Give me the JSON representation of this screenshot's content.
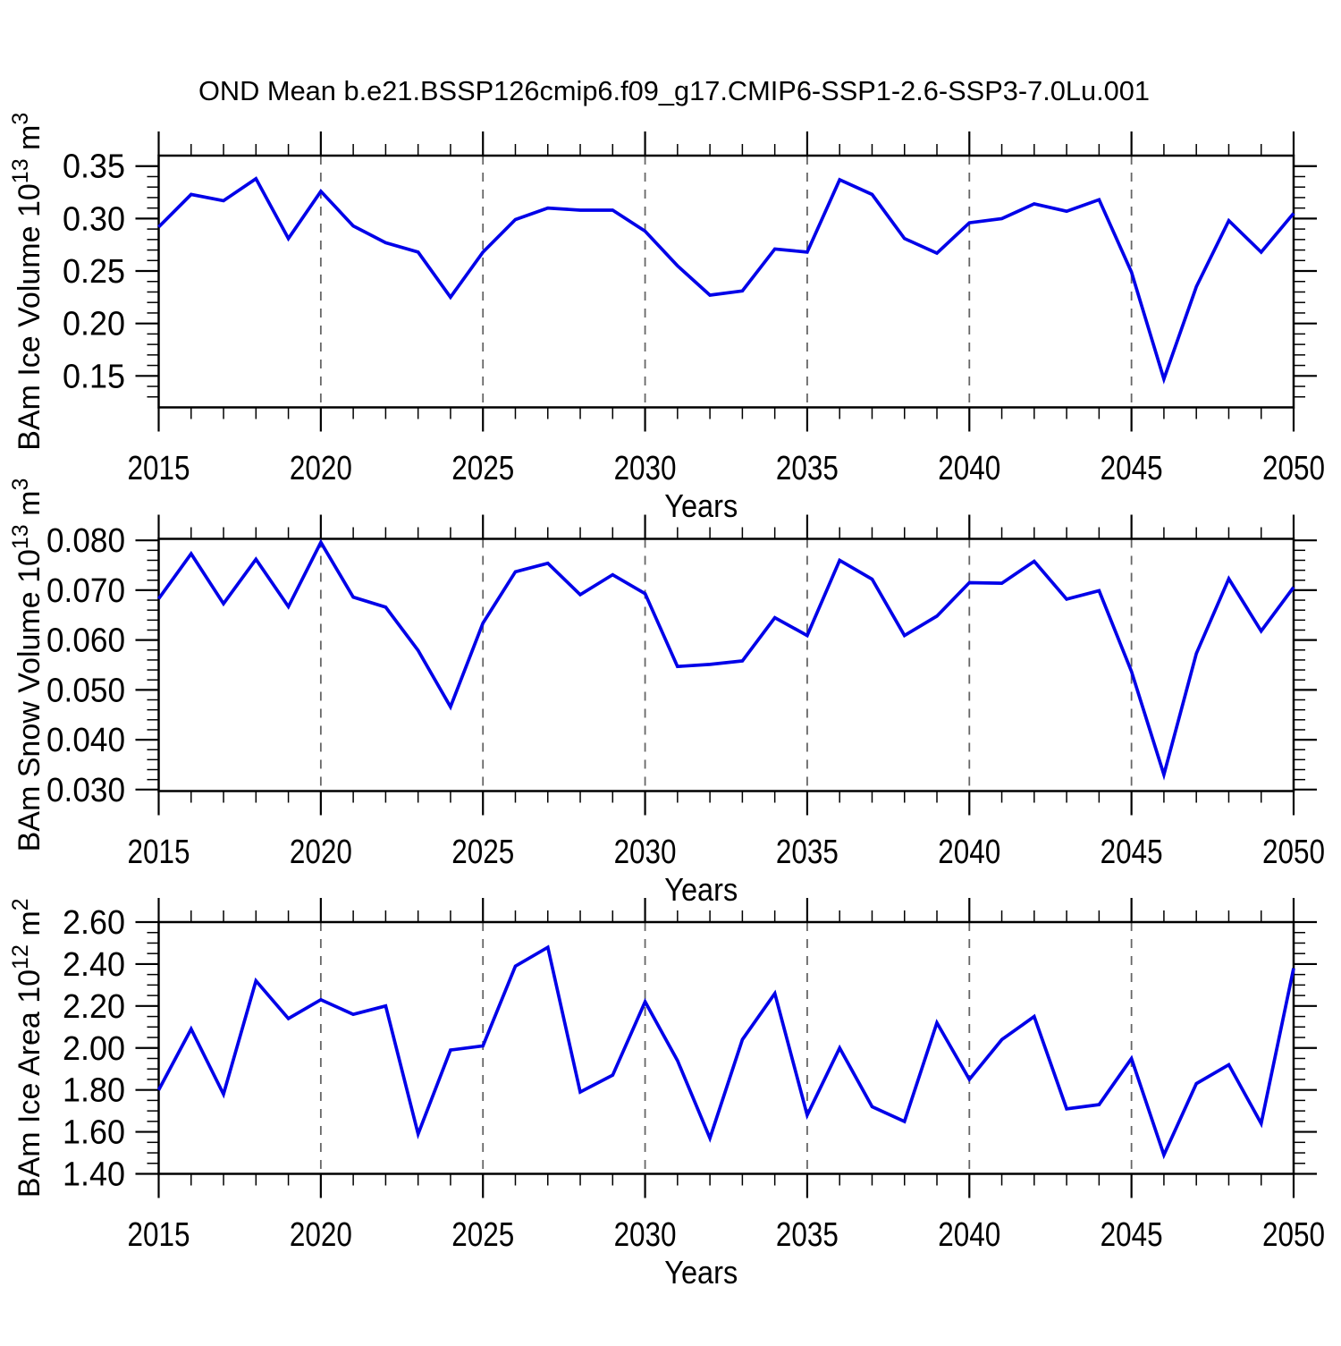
{
  "figure": {
    "title": "OND Mean b.e21.BSSP126cmip6.f09_g17.CMIP6-SSP1-2.6-SSP3-7.0Lu.001",
    "background_color": "#ffffff",
    "line_color": "#0000e8",
    "axis_color": "#000000",
    "grid_color": "#666666"
  },
  "chart_data": [
    {
      "type": "line",
      "name": "bam-ice-volume",
      "title": "",
      "xlabel": "Years",
      "ylabel_text": "BAm Ice Volume 10^13 m^3",
      "ylabel_parts": [
        {
          "t": "BAm Ice Volume 10"
        },
        {
          "t": "13",
          "sup": true
        },
        {
          "t": " m"
        },
        {
          "t": "3",
          "sup": true
        }
      ],
      "x": [
        2015,
        2016,
        2017,
        2018,
        2019,
        2020,
        2021,
        2022,
        2023,
        2024,
        2025,
        2026,
        2027,
        2028,
        2029,
        2030,
        2031,
        2032,
        2033,
        2034,
        2035,
        2036,
        2037,
        2038,
        2039,
        2040,
        2041,
        2042,
        2043,
        2044,
        2045,
        2046,
        2047,
        2048,
        2049,
        2050
      ],
      "values": [
        0.292,
        0.323,
        0.317,
        0.338,
        0.281,
        0.326,
        0.293,
        0.277,
        0.268,
        0.225,
        0.268,
        0.299,
        0.31,
        0.308,
        0.308,
        0.288,
        0.255,
        0.227,
        0.231,
        0.271,
        0.268,
        0.337,
        0.323,
        0.281,
        0.267,
        0.296,
        0.3,
        0.314,
        0.307,
        0.318,
        0.249,
        0.147,
        0.235,
        0.298,
        0.268,
        0.305
      ],
      "xlim": [
        2015,
        2050
      ],
      "ylim": [
        0.12,
        0.36
      ],
      "xtick_values": [
        2015,
        2020,
        2025,
        2030,
        2035,
        2040,
        2045,
        2050
      ],
      "xtick_labels": [
        "2015",
        "2020",
        "2025",
        "2030",
        "2035",
        "2040",
        "2045",
        "2050"
      ],
      "x_minor_step": 1,
      "ytick_values": [
        0.15,
        0.2,
        0.25,
        0.3,
        0.35
      ],
      "ytick_labels": [
        "0.15",
        "0.20",
        "0.25",
        "0.30",
        "0.35"
      ],
      "y_minor_step": 0.01,
      "gridlines_x": [
        2020,
        2025,
        2030,
        2035,
        2040,
        2045
      ],
      "grid_style": "dashed-vertical"
    },
    {
      "type": "line",
      "name": "bam-snow-volume",
      "title": "",
      "xlabel": "Years",
      "ylabel_text": "BAm Snow Volume 10^13 m^3",
      "ylabel_parts": [
        {
          "t": "BAm Snow Volume 10"
        },
        {
          "t": "13",
          "sup": true
        },
        {
          "t": " m"
        },
        {
          "t": "3",
          "sup": true
        }
      ],
      "x": [
        2015,
        2016,
        2017,
        2018,
        2019,
        2020,
        2021,
        2022,
        2023,
        2024,
        2025,
        2026,
        2027,
        2028,
        2029,
        2030,
        2031,
        2032,
        2033,
        2034,
        2035,
        2036,
        2037,
        2038,
        2039,
        2040,
        2041,
        2042,
        2043,
        2044,
        2045,
        2046,
        2047,
        2048,
        2049,
        2050
      ],
      "values": [
        0.0683,
        0.0773,
        0.0673,
        0.0762,
        0.0667,
        0.0796,
        0.0686,
        0.0666,
        0.0579,
        0.0466,
        0.0634,
        0.0737,
        0.0754,
        0.0691,
        0.0731,
        0.0693,
        0.0547,
        0.0551,
        0.0558,
        0.0645,
        0.0609,
        0.076,
        0.0722,
        0.0609,
        0.0648,
        0.0715,
        0.0714,
        0.0758,
        0.0682,
        0.0699,
        0.0537,
        0.033,
        0.0573,
        0.0723,
        0.0618,
        0.0706
      ],
      "xlim": [
        2015,
        2050
      ],
      "ylim": [
        0.0297,
        0.0803
      ],
      "xtick_values": [
        2015,
        2020,
        2025,
        2030,
        2035,
        2040,
        2045,
        2050
      ],
      "xtick_labels": [
        "2015",
        "2020",
        "2025",
        "2030",
        "2035",
        "2040",
        "2045",
        "2050"
      ],
      "x_minor_step": 1,
      "ytick_values": [
        0.03,
        0.04,
        0.05,
        0.06,
        0.07,
        0.08
      ],
      "ytick_labels": [
        "0.030",
        "0.040",
        "0.050",
        "0.060",
        "0.070",
        "0.080"
      ],
      "y_minor_step": 0.002,
      "gridlines_x": [
        2020,
        2025,
        2030,
        2035,
        2040,
        2045
      ],
      "grid_style": "dashed-vertical"
    },
    {
      "type": "line",
      "name": "bam-ice-area",
      "title": "",
      "xlabel": "Years",
      "ylabel_text": "BAm Ice Area 10^12 m^2",
      "ylabel_parts": [
        {
          "t": "BAm Ice Area 10"
        },
        {
          "t": "12",
          "sup": true
        },
        {
          "t": " m"
        },
        {
          "t": "2",
          "sup": true
        }
      ],
      "x": [
        2015,
        2016,
        2017,
        2018,
        2019,
        2020,
        2021,
        2022,
        2023,
        2024,
        2025,
        2026,
        2027,
        2028,
        2029,
        2030,
        2031,
        2032,
        2033,
        2034,
        2035,
        2036,
        2037,
        2038,
        2039,
        2040,
        2041,
        2042,
        2043,
        2044,
        2045,
        2046,
        2047,
        2048,
        2049,
        2050
      ],
      "values": [
        1.8,
        2.09,
        1.78,
        2.32,
        2.14,
        2.23,
        2.16,
        2.2,
        1.59,
        1.99,
        2.01,
        2.39,
        2.48,
        1.79,
        1.87,
        2.22,
        1.94,
        1.57,
        2.04,
        2.26,
        1.68,
        2.0,
        1.72,
        1.65,
        2.12,
        1.85,
        2.04,
        2.15,
        1.71,
        1.73,
        1.95,
        1.49,
        1.83,
        1.92,
        1.64,
        2.38
      ],
      "xlim": [
        2015,
        2050
      ],
      "ylim": [
        1.4,
        2.6
      ],
      "xtick_values": [
        2015,
        2020,
        2025,
        2030,
        2035,
        2040,
        2045,
        2050
      ],
      "xtick_labels": [
        "2015",
        "2020",
        "2025",
        "2030",
        "2035",
        "2040",
        "2045",
        "2050"
      ],
      "x_minor_step": 1,
      "ytick_values": [
        1.4,
        1.6,
        1.8,
        2.0,
        2.2,
        2.4,
        2.6
      ],
      "ytick_labels": [
        "1.40",
        "1.60",
        "1.80",
        "2.00",
        "2.20",
        "2.40",
        "2.60"
      ],
      "y_minor_step": 0.05,
      "gridlines_x": [
        2020,
        2025,
        2030,
        2035,
        2040,
        2045
      ],
      "grid_style": "dashed-vertical"
    }
  ]
}
